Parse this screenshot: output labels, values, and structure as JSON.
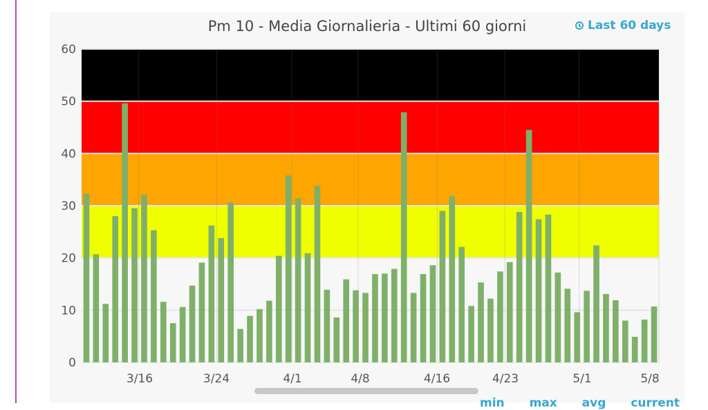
{
  "title": "Pm 10 - Media Giornalieria - Ultimi 60 giorni",
  "range_link": {
    "icon": "clock-icon",
    "label": "Last 60 days"
  },
  "legend": {
    "items": [
      "min",
      "max",
      "avg",
      "current"
    ]
  },
  "colors": {
    "bar": "#7fb069",
    "accent": "#3aa7d0"
  },
  "chart_data": {
    "type": "bar",
    "ylim": [
      0,
      60
    ],
    "yticks": [
      0,
      10,
      20,
      30,
      40,
      50,
      60
    ],
    "xtick_labels": [
      "3/16",
      "3/24",
      "4/1",
      "4/8",
      "4/16",
      "4/23",
      "5/1",
      "5/8"
    ],
    "bands": [
      {
        "from": 20,
        "to": 30,
        "color": "#f0ff00"
      },
      {
        "from": 30,
        "to": 40,
        "color": "#ffa500"
      },
      {
        "from": 40,
        "to": 50,
        "color": "#ff0000"
      },
      {
        "from": 50,
        "to": 60,
        "color": "#000000"
      }
    ],
    "series": [
      {
        "values": [
          32.3,
          20.7,
          11.2,
          28.0,
          49.6,
          29.5,
          32.1,
          25.3,
          11.6,
          7.5,
          10.6,
          14.7,
          19.1,
          26.2,
          23.8,
          30.6,
          6.4,
          8.9,
          10.2,
          11.8,
          20.4,
          35.8,
          31.4,
          20.9,
          33.8,
          13.9,
          8.6,
          15.9,
          13.8,
          13.3,
          16.9,
          17.0,
          17.9,
          47.9,
          13.3,
          16.9,
          18.6,
          29.0,
          31.8,
          22.1,
          10.8,
          15.3,
          12.2,
          17.4,
          19.2,
          28.8,
          44.5,
          27.4,
          28.3,
          17.2,
          14.1,
          9.6,
          13.7,
          22.4,
          13.1,
          11.9,
          8.0,
          4.9,
          8.2,
          10.7
        ]
      }
    ]
  }
}
